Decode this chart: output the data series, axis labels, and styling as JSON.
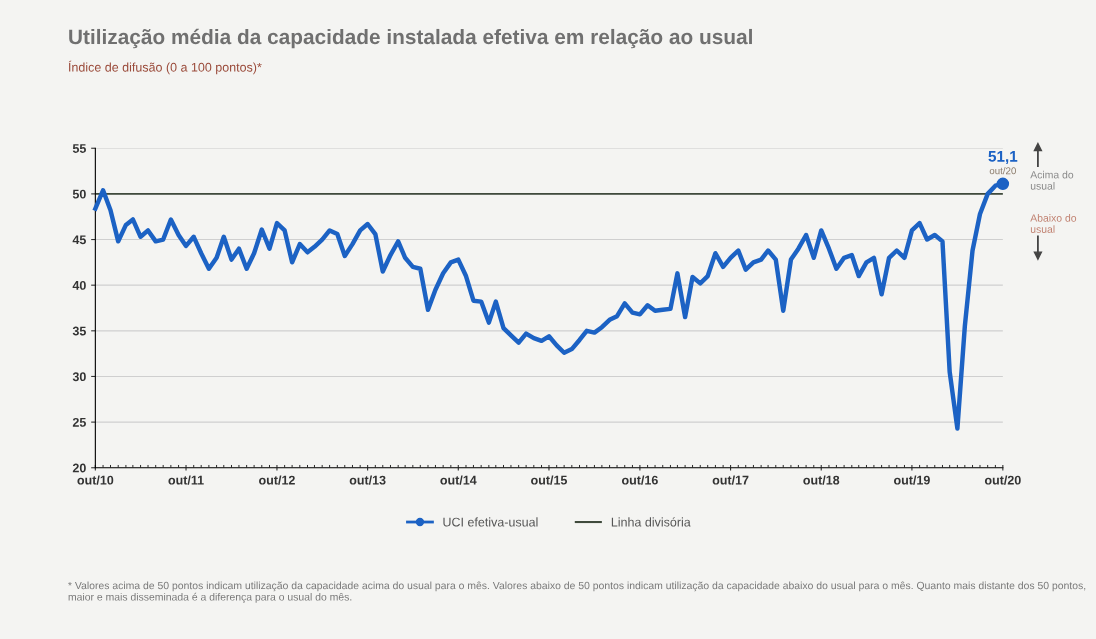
{
  "chart_data": {
    "type": "line",
    "title": "Utilização média da capacidade instalada efetiva em relação ao usual",
    "subtitle": "Índice de difusão (0 a 100 pontos)*",
    "x": [
      "2010-10",
      "2010-11",
      "2010-12",
      "2011-01",
      "2011-02",
      "2011-03",
      "2011-04",
      "2011-05",
      "2011-06",
      "2011-07",
      "2011-08",
      "2011-09",
      "2011-10",
      "2011-11",
      "2011-12",
      "2012-01",
      "2012-02",
      "2012-03",
      "2012-04",
      "2012-05",
      "2012-06",
      "2012-07",
      "2012-08",
      "2012-09",
      "2012-10",
      "2012-11",
      "2012-12",
      "2013-01",
      "2013-02",
      "2013-03",
      "2013-04",
      "2013-05",
      "2013-06",
      "2013-07",
      "2013-08",
      "2013-09",
      "2013-10",
      "2013-11",
      "2013-12",
      "2014-01",
      "2014-02",
      "2014-03",
      "2014-04",
      "2014-05",
      "2014-06",
      "2014-07",
      "2014-08",
      "2014-09",
      "2014-10",
      "2014-11",
      "2014-12",
      "2015-01",
      "2015-02",
      "2015-03",
      "2015-04",
      "2015-05",
      "2015-06",
      "2015-07",
      "2015-08",
      "2015-09",
      "2015-10",
      "2015-11",
      "2015-12",
      "2016-01",
      "2016-02",
      "2016-03",
      "2016-04",
      "2016-05",
      "2016-06",
      "2016-07",
      "2016-08",
      "2016-09",
      "2016-10",
      "2016-11",
      "2016-12",
      "2017-01",
      "2017-02",
      "2017-03",
      "2017-04",
      "2017-05",
      "2017-06",
      "2017-07",
      "2017-08",
      "2017-09",
      "2017-10",
      "2017-11",
      "2017-12",
      "2018-01",
      "2018-02",
      "2018-03",
      "2018-04",
      "2018-05",
      "2018-06",
      "2018-07",
      "2018-08",
      "2018-09",
      "2018-10",
      "2018-11",
      "2018-12",
      "2019-01",
      "2019-02",
      "2019-03",
      "2019-04",
      "2019-05",
      "2019-06",
      "2019-07",
      "2019-08",
      "2019-09",
      "2019-10",
      "2019-11",
      "2019-12",
      "2020-01",
      "2020-02",
      "2020-03",
      "2020-04",
      "2020-05",
      "2020-06",
      "2020-07",
      "2020-08",
      "2020-09",
      "2020-10"
    ],
    "series": [
      {
        "name": "UCI efetiva-usual",
        "color": "#1c62c4",
        "values": [
          48.4,
          50.4,
          48.2,
          44.8,
          46.6,
          47.2,
          45.3,
          46.0,
          44.8,
          45.0,
          47.2,
          45.5,
          44.3,
          45.3,
          43.5,
          41.8,
          43.0,
          45.3,
          42.8,
          44.0,
          41.8,
          43.5,
          46.1,
          44.0,
          46.8,
          46.0,
          42.5,
          44.5,
          43.6,
          44.2,
          45.0,
          46.0,
          45.6,
          43.2,
          44.5,
          46.0,
          46.7,
          45.6,
          41.5,
          43.3,
          44.8,
          43.0,
          42.0,
          41.8,
          37.3,
          39.5,
          41.3,
          42.5,
          42.8,
          41.0,
          38.3,
          38.2,
          35.9,
          38.2,
          35.3,
          34.5,
          33.7,
          34.7,
          34.2,
          33.9,
          34.4,
          33.4,
          32.6,
          33.0,
          34.0,
          35.0,
          34.8,
          35.4,
          36.2,
          36.6,
          38.0,
          37.0,
          36.8,
          37.8,
          37.2,
          37.3,
          37.4,
          41.3,
          36.5,
          40.9,
          40.2,
          41.0,
          43.5,
          42.0,
          43.0,
          43.8,
          41.7,
          42.5,
          42.8,
          43.8,
          42.8,
          37.2,
          42.8,
          44.0,
          45.5,
          43.0,
          46.0,
          44.0,
          41.8,
          43.0,
          43.3,
          41.0,
          42.5,
          43.0,
          39.0,
          43.0,
          43.8,
          43.0,
          46.0,
          46.8,
          45.0,
          45.5,
          44.8,
          30.5,
          24.3,
          35.5,
          43.8,
          47.8,
          50.0,
          50.9,
          51.1
        ]
      }
    ],
    "ref_lines": [
      {
        "axis": "y",
        "value": 50,
        "label": "Linha divisória",
        "color": "#3f4a3c"
      }
    ],
    "ylim": [
      20,
      55
    ],
    "yticks": [
      20,
      25,
      30,
      35,
      40,
      45,
      50,
      55
    ],
    "xlim": [
      "2010-10",
      "2020-10"
    ],
    "xticks": [
      {
        "value": "2010-10",
        "label": "out/10"
      },
      {
        "value": "2011-10",
        "label": "out/11"
      },
      {
        "value": "2012-10",
        "label": "out/12"
      },
      {
        "value": "2013-10",
        "label": "out/13"
      },
      {
        "value": "2014-10",
        "label": "out/14"
      },
      {
        "value": "2015-10",
        "label": "out/15"
      },
      {
        "value": "2016-10",
        "label": "out/16"
      },
      {
        "value": "2017-10",
        "label": "out/17"
      },
      {
        "value": "2018-10",
        "label": "out/18"
      },
      {
        "value": "2019-10",
        "label": "out/19"
      },
      {
        "value": "2020-10",
        "label": "out/20"
      }
    ],
    "grid": "y",
    "legend": "bottom",
    "line_style": "solid",
    "annotations": [
      {
        "text": "51,1",
        "x": "2020-10",
        "y": 51.1
      },
      {
        "text": "out/20",
        "x": "2020-10",
        "y": 51.1
      },
      "Acima do usual",
      "Abaixo do usual",
      "* Valores acima de 50 pontos indicam utilização da capacidade acima do usual para o mês. Valores abaixo de 50 pontos indicam utilização da capacidade abaixo do usual para o mês. Quanto mais distante dos 50 pontos, maior e mais disseminada é a diferença para o usual do mês."
    ]
  }
}
